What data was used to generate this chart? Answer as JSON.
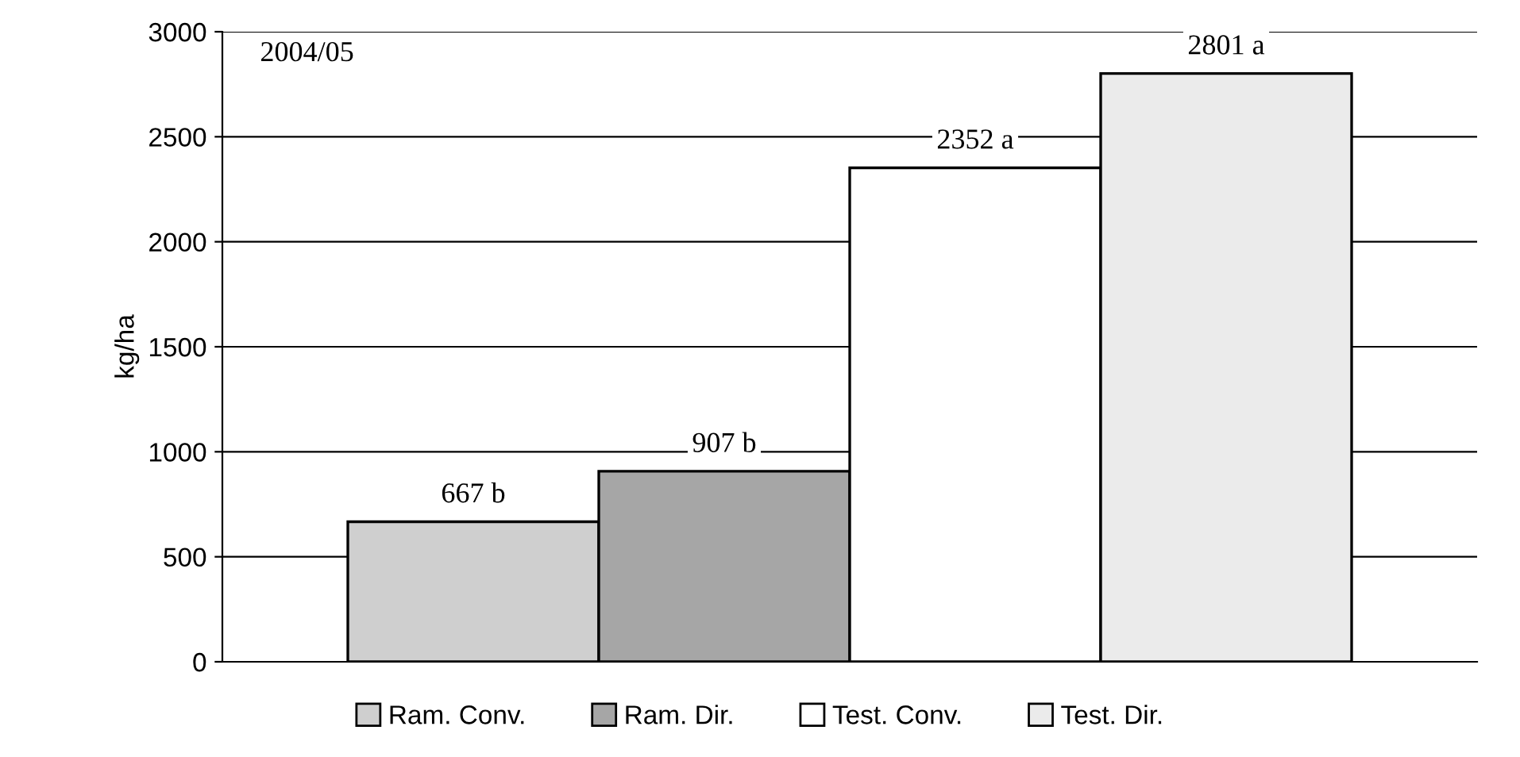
{
  "chart_data": {
    "type": "bar",
    "ylabel": "kg/ha",
    "categories": [
      null
    ],
    "series": [
      {
        "name": "Ram. Conv.",
        "color": "#cfcfcf",
        "values": [
          667
        ],
        "value_labels": [
          "667 b"
        ]
      },
      {
        "name": "Ram. Dir.",
        "color": "#a6a6a6",
        "values": [
          907
        ],
        "value_labels": [
          "907 b"
        ]
      },
      {
        "name": "Test. Conv.",
        "color": "#ffffff",
        "values": [
          2352
        ],
        "value_labels": [
          "2352 a"
        ]
      },
      {
        "name": "Test. Dir.",
        "color": "#ebebeb",
        "values": [
          2801
        ],
        "value_labels": [
          "2801 a"
        ]
      }
    ],
    "ylim": [
      0,
      3000
    ],
    "yticks": [
      0,
      500,
      1000,
      1500,
      2000,
      2500,
      3000
    ],
    "grid": "y",
    "legend": "bottom",
    "annotations": [
      "2004/05"
    ]
  }
}
